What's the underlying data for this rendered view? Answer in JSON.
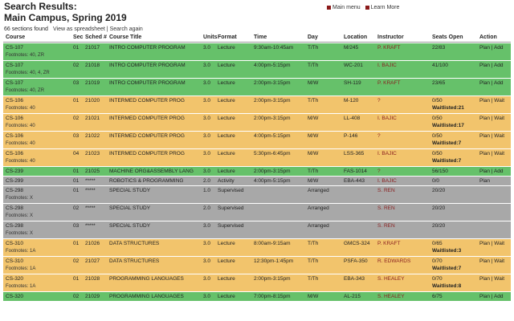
{
  "header": {
    "title": "Search Results:",
    "subtitle": "Main Campus, Spring 2019",
    "links": [
      "Main menu",
      "Learn More"
    ],
    "count": "66 sections found",
    "options": "View as spreadsheet | Search again"
  },
  "table": {
    "columns": [
      "Course",
      "Sec",
      "Sched #",
      "Course Title",
      "Units",
      "Format",
      "Time",
      "Day",
      "Location",
      "Instructor",
      "Seats Open",
      "Action"
    ],
    "rows": [
      {
        "color": "#66c16a",
        "course": "CS-107",
        "sec": "01",
        "sched": "21017",
        "title": "INTRO COMPUTER PROGRAM",
        "units": "3.0",
        "format": "Lecture",
        "time": "9:30am-10:45am",
        "day": "T/Th",
        "location": "M/245",
        "instructor": "P. KRAFT",
        "seats": "22/83",
        "action": "Plan | Add",
        "footnotes": "Footnotes: 40, ZR"
      },
      {
        "color": "#66c16a",
        "course": "CS-107",
        "sec": "02",
        "sched": "21018",
        "title": "INTRO COMPUTER PROGRAM",
        "units": "3.0",
        "format": "Lecture",
        "time": "4:00pm-5:15pm",
        "day": "T/Th",
        "location": "WC-201",
        "instructor": "I. BAJIC",
        "seats": "41/100",
        "action": "Plan | Add",
        "footnotes": "Footnotes: 40, 4, ZR"
      },
      {
        "color": "#66c16a",
        "course": "CS-107",
        "sec": "03",
        "sched": "21019",
        "title": "INTRO COMPUTER PROGRAM",
        "units": "3.0",
        "format": "Lecture",
        "time": "2:00pm-3:15pm",
        "day": "M/W",
        "location": "SH-119",
        "instructor": "P. KRAFT",
        "seats": "23/65",
        "action": "Plan | Add",
        "footnotes": "Footnotes: 40, ZR"
      },
      {
        "color": "#f2c46c",
        "course": "CS-106",
        "sec": "01",
        "sched": "21020",
        "title": "INTERMED COMPUTER PROG",
        "units": "3.0",
        "format": "Lecture",
        "time": "2:00pm-3:15pm",
        "day": "T/Th",
        "location": "M-120",
        "instructor": "?",
        "seats": "0/50",
        "waitlist": "Waitlisted:21",
        "action": "Plan | Wait",
        "footnotes": "Footnotes: 40"
      },
      {
        "color": "#f2c46c",
        "course": "CS-106",
        "sec": "02",
        "sched": "21021",
        "title": "INTERMED COMPUTER PROG",
        "units": "3.0",
        "format": "Lecture",
        "time": "2:00pm-3:15pm",
        "day": "M/W",
        "location": "LL-408",
        "instructor": "I. BAJIC",
        "seats": "0/50",
        "waitlist": "Waitlisted:17",
        "action": "Plan | Wait",
        "footnotes": "Footnotes: 40"
      },
      {
        "color": "#f2c46c",
        "course": "CS-106",
        "sec": "03",
        "sched": "21022",
        "title": "INTERMED COMPUTER PROG",
        "units": "3.0",
        "format": "Lecture",
        "time": "4:00pm-5:15pm",
        "day": "M/W",
        "location": "P-146",
        "instructor": "?",
        "seats": "0/50",
        "waitlist": "Waitlisted:7",
        "action": "Plan | Wait",
        "footnotes": "Footnotes: 40"
      },
      {
        "color": "#f2c46c",
        "course": "CS-106",
        "sec": "04",
        "sched": "21023",
        "title": "INTERMED COMPUTER PROG",
        "units": "3.0",
        "format": "Lecture",
        "time": "5:30pm-6:45pm",
        "day": "M/W",
        "location": "LSS-365",
        "instructor": "I. BAJIC",
        "seats": "0/50",
        "waitlist": "Waitlisted:7",
        "action": "Plan | Wait",
        "footnotes": "Footnotes: 40"
      },
      {
        "color": "#66c16a",
        "course": "CS-239",
        "sec": "01",
        "sched": "21025",
        "title": "MACHINE ORG&ASSEMBLY LANG",
        "units": "3.0",
        "format": "Lecture",
        "time": "2:00pm-3:15pm",
        "day": "T/Th",
        "location": "FAS-1014",
        "instructor": "?",
        "seats": "56/150",
        "action": "Plan | Add"
      },
      {
        "color": "#a8a8a8",
        "course": "CS-299",
        "sec": "01",
        "sched": "*****",
        "title": "ROBOTICS & PROGRAMMING",
        "units": "2.0",
        "format": "Activity",
        "time": "4:00pm-5:15pm",
        "day": "M/W",
        "location": "EBA-443",
        "instructor": "I. BAJIC",
        "seats": "0/0",
        "action": "Plan"
      },
      {
        "color": "#a8a8a8",
        "course": "CS-298",
        "sec": "01",
        "sched": "*****",
        "title": "SPECIAL STUDY",
        "units": "1.0",
        "format": "Supervised",
        "time": "Arranged",
        "instructor": "S. REN",
        "seats": "20/20",
        "footnotes": "Footnotes: X"
      },
      {
        "color": "#a8a8a8",
        "course": "CS-298",
        "sec": "02",
        "sched": "*****",
        "title": "SPECIAL STUDY",
        "units": "2.0",
        "format": "Supervised",
        "time": "Arranged",
        "instructor": "S. REN",
        "seats": "20/20",
        "footnotes": "Footnotes: X"
      },
      {
        "color": "#a8a8a8",
        "course": "CS-298",
        "sec": "03",
        "sched": "*****",
        "title": "SPECIAL STUDY",
        "units": "3.0",
        "format": "Supervised",
        "time": "Arranged",
        "instructor": "S. REN",
        "seats": "20/20",
        "footnotes": "Footnotes: X"
      },
      {
        "color": "#f2c46c",
        "course": "CS-310",
        "sec": "01",
        "sched": "21026",
        "title": "DATA STRUCTURES",
        "units": "3.0",
        "format": "Lecture",
        "time": "8:00am-9:15am",
        "day": "T/Th",
        "location": "GMCS-324",
        "instructor": "P. KRAFT",
        "seats": "0/65",
        "waitlist": "Waitlisted:3",
        "action": "Plan | Wait",
        "footnotes": "Footnotes: 1A"
      },
      {
        "color": "#f2c46c",
        "course": "CS-310",
        "sec": "02",
        "sched": "21027",
        "title": "DATA STRUCTURES",
        "units": "3.0",
        "format": "Lecture",
        "time": "12:30pm-1:45pm",
        "day": "T/Th",
        "location": "PSFA-350",
        "instructor": "R. EDWARDS",
        "seats": "0/70",
        "waitlist": "Waitlisted:7",
        "action": "Plan | Wait",
        "footnotes": "Footnotes: 1A"
      },
      {
        "color": "#f2c46c",
        "course": "CS-320",
        "sec": "01",
        "sched": "21028",
        "title": "PROGRAMMING LANGUAGES",
        "units": "3.0",
        "format": "Lecture",
        "time": "2:00pm-3:15pm",
        "day": "T/Th",
        "location": "EBA-343",
        "instructor": "S. HEALEY",
        "seats": "0/70",
        "waitlist": "Waitlisted:8",
        "action": "Plan | Wait",
        "footnotes": "Footnotes: 1A"
      },
      {
        "color": "#66c16a",
        "course": "CS-320",
        "sec": "02",
        "sched": "21029",
        "title": "PROGRAMMING LANGUAGES",
        "units": "3.0",
        "format": "Lecture",
        "time": "7:00pm-8:15pm",
        "day": "M/W",
        "location": "AL-215",
        "instructor": "S. HEALEY",
        "seats": "6/75",
        "action": "Plan | Add"
      }
    ]
  }
}
